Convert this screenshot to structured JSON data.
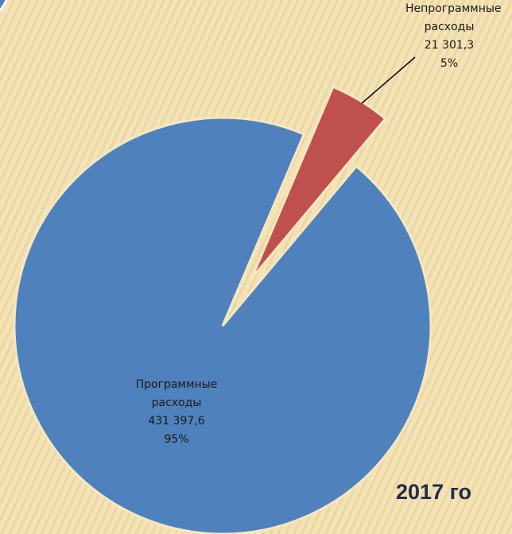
{
  "chart_data": {
    "type": "pie",
    "title": "2017 го",
    "categories": [
      "Непрограммные расходы",
      "Программные расходы"
    ],
    "values": [
      21301.3,
      431397.6
    ],
    "value_labels": [
      "21 301,3",
      "431 397,6"
    ],
    "percents": [
      5,
      95
    ],
    "percent_labels": [
      "5%",
      "95%"
    ],
    "colors": [
      "#c0504d",
      "#4f81bd"
    ],
    "startangle": 23,
    "explode": [
      1,
      0
    ]
  }
}
